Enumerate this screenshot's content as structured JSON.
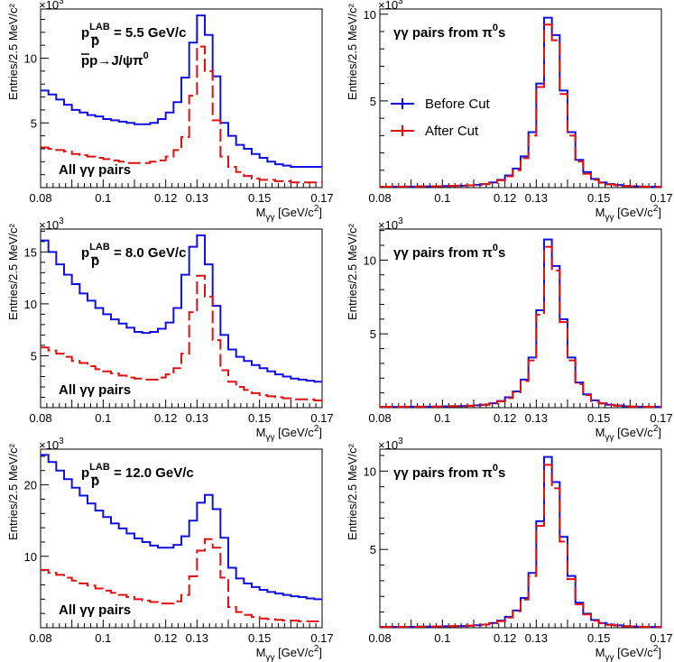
{
  "colors": {
    "before": "#1010e0",
    "after": "#e01010"
  },
  "chart_data": [
    {
      "type": "line",
      "xlabel_main": "M",
      "xlabel_sub": "γγ",
      "xlabel_unit": "[GeV/c",
      "xlabel_exp": "2",
      "xlabel_close": "]",
      "ylabel": "Entries/2.5 MeV/c²",
      "multiplier": "×10",
      "multiplier_exp": "3",
      "xlim": [
        0.08,
        0.17
      ],
      "ylim": [
        0,
        13.8
      ],
      "xticks": [
        "0.08",
        "0.1",
        "0.12",
        "0.13",
        "0.15",
        "0.17"
      ],
      "xtick_values": [
        0.08,
        0.1,
        0.12,
        0.13,
        0.15,
        0.17
      ],
      "yticks": [
        "5",
        "10"
      ],
      "ytick_values": [
        5,
        10
      ],
      "x": [
        0.0825,
        0.085,
        0.0875,
        0.09,
        0.0925,
        0.095,
        0.0975,
        0.1,
        0.1025,
        0.105,
        0.1075,
        0.11,
        0.1125,
        0.115,
        0.1175,
        0.12,
        0.1225,
        0.125,
        0.1275,
        0.13,
        0.1325,
        0.135,
        0.1375,
        0.14,
        0.1425,
        0.145,
        0.1475,
        0.15,
        0.1525,
        0.155,
        0.1575,
        0.16,
        0.1625,
        0.165,
        0.1675,
        0.17
      ],
      "series": [
        {
          "key": "before",
          "style": "solid",
          "values": [
            7.5,
            7.2,
            6.8,
            6.4,
            6.0,
            5.8,
            5.6,
            5.5,
            5.3,
            5.2,
            5.1,
            5.0,
            4.9,
            4.9,
            5.0,
            5.3,
            5.8,
            6.6,
            8.5,
            11.2,
            13.3,
            11.8,
            8.6,
            5.0,
            4.0,
            3.3,
            3.0,
            2.6,
            2.3,
            2.0,
            1.8,
            1.7,
            1.6,
            1.6,
            1.6,
            1.6
          ]
        },
        {
          "key": "after",
          "style": "dashed",
          "values": [
            3.1,
            3.0,
            2.9,
            2.8,
            2.6,
            2.5,
            2.4,
            2.3,
            2.2,
            2.1,
            2.0,
            1.9,
            1.9,
            1.9,
            2.0,
            2.1,
            2.4,
            2.9,
            3.9,
            7.1,
            10.9,
            9.0,
            5.2,
            2.4,
            1.6,
            1.2,
            0.9,
            0.7,
            0.6,
            0.6,
            0.5,
            0.5,
            0.4,
            0.4,
            0.4,
            0.4
          ]
        }
      ],
      "annotations": {
        "p_main": "p",
        "p_sub": "p",
        "p_sup": "LAB",
        "p_value": "= 5.5 GeV/c",
        "reaction": "pp→J/ψπ",
        "reaction_sup": "0",
        "pairs": "All γγ pairs"
      }
    },
    {
      "type": "line",
      "xlabel_main": "M",
      "xlabel_sub": "γγ",
      "xlabel_unit": "[GeV/c",
      "xlabel_exp": "2",
      "xlabel_close": "]",
      "ylabel": "Entries/2.5 MeV/c²",
      "multiplier": "×10",
      "multiplier_exp": "3",
      "xlim": [
        0.08,
        0.17
      ],
      "ylim": [
        0,
        10.3
      ],
      "xticks": [
        "0.08",
        "0.1",
        "0.12",
        "0.13",
        "0.15",
        "0.17"
      ],
      "xtick_values": [
        0.08,
        0.1,
        0.12,
        0.13,
        0.15,
        0.17
      ],
      "yticks": [
        "5",
        "10"
      ],
      "ytick_values": [
        5,
        10
      ],
      "x": [
        0.0825,
        0.085,
        0.0875,
        0.09,
        0.0925,
        0.095,
        0.0975,
        0.1,
        0.1025,
        0.105,
        0.1075,
        0.11,
        0.1125,
        0.115,
        0.1175,
        0.12,
        0.1225,
        0.125,
        0.1275,
        0.13,
        0.1325,
        0.135,
        0.1375,
        0.14,
        0.1425,
        0.145,
        0.1475,
        0.15,
        0.1525,
        0.155,
        0.1575,
        0.16,
        0.1625,
        0.165,
        0.1675,
        0.17
      ],
      "series": [
        {
          "key": "before",
          "style": "solid",
          "values": [
            0.05,
            0.05,
            0.05,
            0.06,
            0.06,
            0.07,
            0.07,
            0.08,
            0.09,
            0.1,
            0.11,
            0.13,
            0.16,
            0.2,
            0.3,
            0.45,
            0.7,
            1.1,
            1.8,
            3.2,
            6.0,
            9.8,
            8.8,
            5.6,
            3.2,
            1.6,
            0.9,
            0.5,
            0.3,
            0.2,
            0.15,
            0.1,
            0.08,
            0.06,
            0.05,
            0.05
          ]
        },
        {
          "key": "after",
          "style": "dashed",
          "values": [
            0.05,
            0.05,
            0.05,
            0.06,
            0.06,
            0.07,
            0.07,
            0.08,
            0.09,
            0.1,
            0.11,
            0.13,
            0.16,
            0.2,
            0.28,
            0.42,
            0.65,
            1.0,
            1.7,
            3.0,
            5.8,
            9.4,
            8.5,
            5.4,
            3.0,
            1.5,
            0.8,
            0.45,
            0.28,
            0.18,
            0.13,
            0.09,
            0.07,
            0.06,
            0.05,
            0.05
          ]
        }
      ],
      "annotations": {
        "title": "γγ pairs from π",
        "title_sup": "0",
        "title_tail": "s"
      },
      "legend": [
        "Before Cut",
        "After Cut"
      ]
    },
    {
      "type": "line",
      "xlabel_main": "M",
      "xlabel_sub": "γγ",
      "xlabel_unit": "[GeV/c",
      "xlabel_exp": "2",
      "xlabel_close": "]",
      "ylabel": "Entries/2.5 MeV/c²",
      "multiplier": "×10",
      "multiplier_exp": "3",
      "xlim": [
        0.08,
        0.17
      ],
      "ylim": [
        0,
        17.2
      ],
      "xticks": [
        "0.08",
        "0.1",
        "0.12",
        "0.13",
        "0.15",
        "0.17"
      ],
      "xtick_values": [
        0.08,
        0.1,
        0.12,
        0.13,
        0.15,
        0.17
      ],
      "yticks": [
        "5",
        "10",
        "15"
      ],
      "ytick_values": [
        5,
        10,
        15
      ],
      "x": [
        0.0825,
        0.085,
        0.0875,
        0.09,
        0.0925,
        0.095,
        0.0975,
        0.1,
        0.1025,
        0.105,
        0.1075,
        0.11,
        0.1125,
        0.115,
        0.1175,
        0.12,
        0.1225,
        0.125,
        0.1275,
        0.13,
        0.1325,
        0.135,
        0.1375,
        0.14,
        0.1425,
        0.145,
        0.1475,
        0.15,
        0.1525,
        0.155,
        0.1575,
        0.16,
        0.1625,
        0.165,
        0.1675,
        0.17
      ],
      "series": [
        {
          "key": "before",
          "style": "solid",
          "values": [
            16.1,
            15.0,
            13.8,
            12.8,
            11.9,
            11.0,
            10.3,
            9.6,
            9.0,
            8.5,
            8.1,
            7.7,
            7.3,
            7.2,
            7.3,
            7.6,
            8.2,
            9.6,
            12.8,
            15.5,
            16.6,
            13.8,
            9.8,
            7.0,
            5.6,
            4.9,
            4.5,
            4.1,
            3.8,
            3.5,
            3.2,
            3.0,
            2.8,
            2.7,
            2.6,
            2.5
          ]
        },
        {
          "key": "after",
          "style": "dashed",
          "values": [
            5.8,
            5.5,
            5.2,
            4.9,
            4.5,
            4.3,
            4.0,
            3.7,
            3.5,
            3.3,
            3.1,
            2.9,
            2.8,
            2.7,
            2.7,
            2.9,
            3.2,
            3.8,
            5.2,
            9.2,
            12.7,
            10.7,
            6.5,
            3.6,
            2.5,
            2.0,
            1.7,
            1.4,
            1.2,
            1.1,
            1.0,
            0.9,
            0.8,
            0.8,
            0.8,
            0.7
          ]
        }
      ],
      "annotations": {
        "p_main": "p",
        "p_sub": "p",
        "p_sup": "LAB",
        "p_value": "= 8.0 GeV/c",
        "pairs": "All γγ pairs"
      }
    },
    {
      "type": "line",
      "xlabel_main": "M",
      "xlabel_sub": "γγ",
      "xlabel_unit": "[GeV/c",
      "xlabel_exp": "2",
      "xlabel_close": "]",
      "ylabel": "Entries/2.5 MeV/c²",
      "multiplier": "×10",
      "multiplier_exp": "3",
      "xlim": [
        0.08,
        0.17
      ],
      "ylim": [
        0,
        12.1
      ],
      "xticks": [
        "0.08",
        "0.1",
        "0.12",
        "0.13",
        "0.15",
        "0.17"
      ],
      "xtick_values": [
        0.08,
        0.1,
        0.12,
        0.13,
        0.15,
        0.17
      ],
      "yticks": [
        "5",
        "10"
      ],
      "ytick_values": [
        5,
        10
      ],
      "x": [
        0.0825,
        0.085,
        0.0875,
        0.09,
        0.0925,
        0.095,
        0.0975,
        0.1,
        0.1025,
        0.105,
        0.1075,
        0.11,
        0.1125,
        0.115,
        0.1175,
        0.12,
        0.1225,
        0.125,
        0.1275,
        0.13,
        0.1325,
        0.135,
        0.1375,
        0.14,
        0.1425,
        0.145,
        0.1475,
        0.15,
        0.1525,
        0.155,
        0.1575,
        0.16,
        0.1625,
        0.165,
        0.1675,
        0.17
      ],
      "series": [
        {
          "key": "before",
          "style": "solid",
          "values": [
            0.05,
            0.05,
            0.05,
            0.06,
            0.06,
            0.07,
            0.07,
            0.08,
            0.09,
            0.1,
            0.11,
            0.13,
            0.16,
            0.2,
            0.3,
            0.45,
            0.7,
            1.1,
            1.9,
            3.4,
            6.6,
            11.4,
            9.6,
            6.0,
            3.4,
            1.7,
            0.9,
            0.5,
            0.3,
            0.2,
            0.15,
            0.1,
            0.08,
            0.06,
            0.05,
            0.05
          ]
        },
        {
          "key": "after",
          "style": "dashed",
          "values": [
            0.05,
            0.05,
            0.05,
            0.06,
            0.06,
            0.07,
            0.07,
            0.08,
            0.09,
            0.1,
            0.11,
            0.13,
            0.16,
            0.2,
            0.28,
            0.42,
            0.65,
            1.05,
            1.8,
            3.2,
            6.3,
            10.9,
            9.3,
            5.8,
            3.2,
            1.6,
            0.85,
            0.45,
            0.28,
            0.18,
            0.13,
            0.09,
            0.07,
            0.06,
            0.05,
            0.05
          ]
        }
      ],
      "annotations": {
        "title": "γγ pairs from π",
        "title_sup": "0",
        "title_tail": "s"
      }
    },
    {
      "type": "line",
      "xlabel_main": "M",
      "xlabel_sub": "γγ",
      "xlabel_unit": "[GeV/c",
      "xlabel_exp": "2",
      "xlabel_close": "]",
      "ylabel": "Entries/2.5 MeV/c²",
      "multiplier": "×10",
      "multiplier_exp": "3",
      "xlim": [
        0.08,
        0.17
      ],
      "ylim": [
        0,
        25
      ],
      "xticks": [
        "0.08",
        "0.1",
        "0.12",
        "0.13",
        "0.15",
        "0.17"
      ],
      "xtick_values": [
        0.08,
        0.1,
        0.12,
        0.13,
        0.15,
        0.17
      ],
      "yticks": [
        "10",
        "20"
      ],
      "ytick_values": [
        10,
        20
      ],
      "x": [
        0.0825,
        0.085,
        0.0875,
        0.09,
        0.0925,
        0.095,
        0.0975,
        0.1,
        0.1025,
        0.105,
        0.1075,
        0.11,
        0.1125,
        0.115,
        0.1175,
        0.12,
        0.1225,
        0.125,
        0.1275,
        0.13,
        0.1325,
        0.135,
        0.1375,
        0.14,
        0.1425,
        0.145,
        0.1475,
        0.15,
        0.1525,
        0.155,
        0.1575,
        0.16,
        0.1625,
        0.165,
        0.1675,
        0.17
      ],
      "series": [
        {
          "key": "before",
          "style": "solid",
          "values": [
            24.2,
            23.2,
            22.0,
            20.8,
            19.6,
            18.5,
            17.4,
            16.4,
            15.5,
            14.6,
            13.9,
            13.2,
            12.5,
            12.0,
            11.5,
            11.2,
            11.2,
            11.6,
            12.8,
            15.0,
            17.5,
            18.6,
            16.6,
            12.6,
            8.4,
            6.9,
            6.2,
            5.7,
            5.3,
            5.0,
            4.8,
            4.6,
            4.4,
            4.3,
            4.1,
            4.0
          ]
        },
        {
          "key": "after",
          "style": "dashed",
          "values": [
            8.1,
            7.7,
            7.4,
            7.0,
            6.6,
            6.2,
            5.9,
            5.5,
            5.2,
            4.9,
            4.6,
            4.3,
            4.0,
            3.8,
            3.6,
            3.4,
            3.4,
            3.7,
            4.6,
            7.2,
            10.8,
            12.4,
            11.2,
            7.0,
            2.9,
            2.2,
            1.8,
            1.5,
            1.3,
            1.2,
            1.1,
            1.0,
            1.0,
            0.9,
            0.9,
            0.9
          ]
        }
      ],
      "annotations": {
        "p_main": "p",
        "p_sub": "p",
        "p_sup": "LAB",
        "p_value": "= 12.0 GeV/c",
        "pairs": "All γγ pairs"
      }
    },
    {
      "type": "line",
      "xlabel_main": "M",
      "xlabel_sub": "γγ",
      "xlabel_unit": "[GeV/c",
      "xlabel_exp": "2",
      "xlabel_close": "]",
      "ylabel": "Entries/2.5 MeV/c²",
      "multiplier": "×10",
      "multiplier_exp": "3",
      "xlim": [
        0.08,
        0.17
      ],
      "ylim": [
        0,
        11.4
      ],
      "xticks": [
        "0.08",
        "0.1",
        "0.12",
        "0.13",
        "0.15",
        "0.17"
      ],
      "xtick_values": [
        0.08,
        0.1,
        0.12,
        0.13,
        0.15,
        0.17
      ],
      "yticks": [
        "5",
        "10"
      ],
      "ytick_values": [
        5,
        10
      ],
      "x": [
        0.0825,
        0.085,
        0.0875,
        0.09,
        0.0925,
        0.095,
        0.0975,
        0.1,
        0.1025,
        0.105,
        0.1075,
        0.11,
        0.1125,
        0.115,
        0.1175,
        0.12,
        0.1225,
        0.125,
        0.1275,
        0.13,
        0.1325,
        0.135,
        0.1375,
        0.14,
        0.1425,
        0.145,
        0.1475,
        0.15,
        0.1525,
        0.155,
        0.1575,
        0.16,
        0.1625,
        0.165,
        0.1675,
        0.17
      ],
      "series": [
        {
          "key": "before",
          "style": "solid",
          "values": [
            0.05,
            0.05,
            0.05,
            0.06,
            0.06,
            0.07,
            0.07,
            0.08,
            0.09,
            0.1,
            0.11,
            0.13,
            0.16,
            0.2,
            0.3,
            0.45,
            0.7,
            1.1,
            1.9,
            3.5,
            6.8,
            10.9,
            9.3,
            5.8,
            3.3,
            1.6,
            0.9,
            0.5,
            0.3,
            0.2,
            0.15,
            0.1,
            0.08,
            0.06,
            0.05,
            0.05
          ]
        },
        {
          "key": "after",
          "style": "dashed",
          "values": [
            0.05,
            0.05,
            0.05,
            0.06,
            0.06,
            0.07,
            0.07,
            0.08,
            0.09,
            0.1,
            0.11,
            0.13,
            0.16,
            0.2,
            0.28,
            0.42,
            0.65,
            1.05,
            1.8,
            3.3,
            6.5,
            10.4,
            8.9,
            5.5,
            3.1,
            1.5,
            0.85,
            0.45,
            0.28,
            0.18,
            0.13,
            0.09,
            0.07,
            0.06,
            0.05,
            0.05
          ]
        }
      ],
      "annotations": {
        "title": "γγ pairs from π",
        "title_sup": "0",
        "title_tail": "s"
      }
    }
  ]
}
